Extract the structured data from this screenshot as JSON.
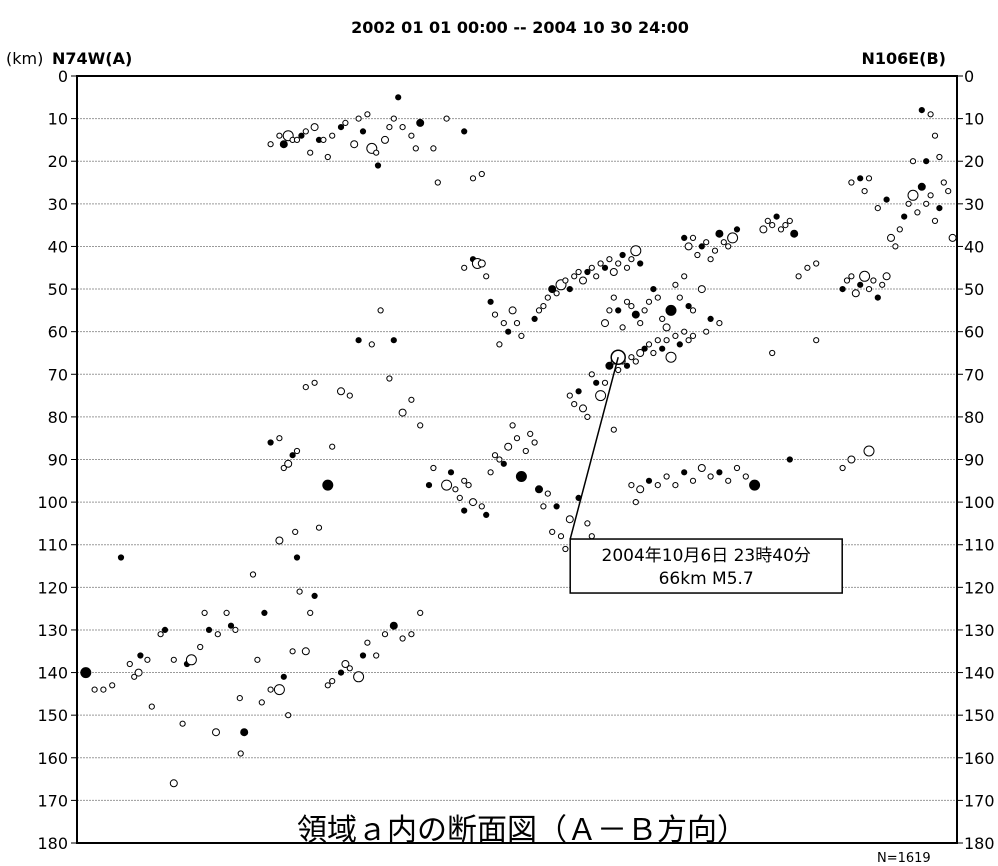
{
  "chart_data": {
    "type": "scatter",
    "period": "2002 01 01 00:00 -- 2004 10 30 24:00",
    "ylabel": "(km)",
    "left_end_label": "N74W(A)",
    "right_end_label": "N106E(B)",
    "plot_title": "領域ａ内の断面図（Ａ－Ｂ方向）",
    "count_label": "N=1619",
    "y_axis": {
      "reversed": true,
      "ylim": [
        0,
        180
      ],
      "ticks": [
        0,
        10,
        20,
        30,
        40,
        50,
        60,
        70,
        80,
        90,
        100,
        110,
        120,
        130,
        140,
        150,
        160,
        170,
        180
      ],
      "grid": true
    },
    "x_axis": {
      "xlim": [
        0,
        100
      ],
      "ticks_shown": false
    },
    "highlight_event": {
      "line1": "2004年10月6日 23時40分",
      "line2": "66km  M5.7",
      "x": 61.5,
      "depth": 66,
      "box_x": 71.5,
      "box_depth": 115
    },
    "series": [
      {
        "name": "",
        "points": [
          [
            1,
            140
          ],
          [
            2,
            144
          ],
          [
            3,
            144
          ],
          [
            4,
            143
          ],
          [
            5,
            113
          ],
          [
            6,
            138
          ],
          [
            6.5,
            141
          ],
          [
            7,
            140
          ],
          [
            7.2,
            136
          ],
          [
            8,
            137
          ],
          [
            8.5,
            148
          ],
          [
            9.5,
            131
          ],
          [
            10,
            130
          ],
          [
            11,
            137
          ],
          [
            11,
            166
          ],
          [
            12,
            152
          ],
          [
            12.5,
            138
          ],
          [
            13,
            137
          ],
          [
            14,
            134
          ],
          [
            14.5,
            126
          ],
          [
            15,
            130
          ],
          [
            15.8,
            154
          ],
          [
            16,
            131
          ],
          [
            17,
            126
          ],
          [
            17.5,
            129
          ],
          [
            18,
            130
          ],
          [
            18.5,
            146
          ],
          [
            18.6,
            159
          ],
          [
            19,
            154
          ],
          [
            20,
            117
          ],
          [
            20.5,
            137
          ],
          [
            21,
            147
          ],
          [
            21.3,
            126
          ],
          [
            22,
            144
          ],
          [
            23,
            144
          ],
          [
            23,
            109
          ],
          [
            23.5,
            141
          ],
          [
            24,
            150
          ],
          [
            24.5,
            135
          ],
          [
            24.8,
            107
          ],
          [
            25,
            113
          ],
          [
            25.3,
            121
          ],
          [
            26,
            135
          ],
          [
            26.5,
            126
          ],
          [
            27,
            122
          ],
          [
            27.5,
            106
          ],
          [
            28.5,
            143
          ],
          [
            29,
            142
          ],
          [
            30,
            140
          ],
          [
            30.5,
            138
          ],
          [
            31,
            139
          ],
          [
            32,
            141
          ],
          [
            32.5,
            136
          ],
          [
            33,
            133
          ],
          [
            34,
            136
          ],
          [
            35,
            131
          ],
          [
            36,
            129
          ],
          [
            37,
            132
          ],
          [
            38,
            131
          ],
          [
            39,
            126
          ],
          [
            22,
            86
          ],
          [
            23,
            85
          ],
          [
            23.5,
            92
          ],
          [
            24,
            91
          ],
          [
            24.5,
            89
          ],
          [
            25,
            88
          ],
          [
            26,
            73
          ],
          [
            27,
            72
          ],
          [
            28.5,
            96
          ],
          [
            29,
            87
          ],
          [
            30,
            74
          ],
          [
            31,
            75
          ],
          [
            32,
            62
          ],
          [
            33.5,
            63
          ],
          [
            34.5,
            55
          ],
          [
            35.5,
            71
          ],
          [
            36,
            62
          ],
          [
            37,
            79
          ],
          [
            38,
            76
          ],
          [
            39,
            82
          ],
          [
            40,
            96
          ],
          [
            40.5,
            92
          ],
          [
            22,
            16
          ],
          [
            23,
            14
          ],
          [
            23.5,
            16
          ],
          [
            24,
            14
          ],
          [
            24.5,
            15
          ],
          [
            25,
            15
          ],
          [
            25.5,
            14
          ],
          [
            26,
            13
          ],
          [
            26.5,
            18
          ],
          [
            27,
            12
          ],
          [
            27.5,
            15
          ],
          [
            28,
            15
          ],
          [
            28.5,
            19
          ],
          [
            29,
            14
          ],
          [
            30,
            12
          ],
          [
            30.5,
            11
          ],
          [
            31.5,
            16
          ],
          [
            32,
            10
          ],
          [
            32.5,
            13
          ],
          [
            33,
            9
          ],
          [
            33.5,
            17
          ],
          [
            34,
            18
          ],
          [
            34.2,
            21
          ],
          [
            35,
            15
          ],
          [
            35.5,
            12
          ],
          [
            36,
            10
          ],
          [
            36.5,
            5
          ],
          [
            37,
            12
          ],
          [
            38,
            14
          ],
          [
            38.5,
            17
          ],
          [
            39,
            11
          ],
          [
            40.5,
            17
          ],
          [
            41,
            25
          ],
          [
            42,
            10
          ],
          [
            44,
            13
          ],
          [
            45,
            24
          ],
          [
            46,
            23
          ],
          [
            42,
            96
          ],
          [
            42.5,
            93
          ],
          [
            43,
            97
          ],
          [
            43.5,
            99
          ],
          [
            44,
            95
          ],
          [
            44,
            102
          ],
          [
            44.5,
            96
          ],
          [
            45,
            100
          ],
          [
            46,
            101
          ],
          [
            46.5,
            103
          ],
          [
            47,
            93
          ],
          [
            47.5,
            89
          ],
          [
            48,
            90
          ],
          [
            48.5,
            91
          ],
          [
            49,
            87
          ],
          [
            49.5,
            82
          ],
          [
            50,
            85
          ],
          [
            50.5,
            94
          ],
          [
            51,
            88
          ],
          [
            51.5,
            84
          ],
          [
            52,
            86
          ],
          [
            52.5,
            97
          ],
          [
            53,
            101
          ],
          [
            53.5,
            98
          ],
          [
            54,
            107
          ],
          [
            54.5,
            101
          ],
          [
            55,
            108
          ],
          [
            55.5,
            111
          ],
          [
            56,
            104
          ],
          [
            57,
            99
          ],
          [
            58,
            105
          ],
          [
            58.5,
            108
          ],
          [
            44,
            45
          ],
          [
            45,
            43
          ],
          [
            45.5,
            44
          ],
          [
            46,
            44
          ],
          [
            46.5,
            47
          ],
          [
            47,
            53
          ],
          [
            47.5,
            56
          ],
          [
            48,
            63
          ],
          [
            48.5,
            58
          ],
          [
            49,
            60
          ],
          [
            49.5,
            55
          ],
          [
            50,
            58
          ],
          [
            50.5,
            61
          ],
          [
            52,
            57
          ],
          [
            52.5,
            55
          ],
          [
            53,
            54
          ],
          [
            53.5,
            52
          ],
          [
            54,
            50
          ],
          [
            54.5,
            51
          ],
          [
            55,
            49
          ],
          [
            55.5,
            48
          ],
          [
            56,
            50
          ],
          [
            56.5,
            47
          ],
          [
            57,
            46
          ],
          [
            57.5,
            48
          ],
          [
            58,
            46
          ],
          [
            58.5,
            45
          ],
          [
            59,
            47
          ],
          [
            59.5,
            44
          ],
          [
            60,
            45
          ],
          [
            60.5,
            43
          ],
          [
            61,
            46
          ],
          [
            61.5,
            44
          ],
          [
            62,
            42
          ],
          [
            62.5,
            45
          ],
          [
            63,
            43
          ],
          [
            63.5,
            41
          ],
          [
            64,
            44
          ],
          [
            60,
            58
          ],
          [
            60.5,
            55
          ],
          [
            61,
            52
          ],
          [
            61.5,
            55
          ],
          [
            62,
            59
          ],
          [
            62.5,
            53
          ],
          [
            63,
            54
          ],
          [
            63.5,
            56
          ],
          [
            64,
            58
          ],
          [
            64.5,
            55
          ],
          [
            65,
            53
          ],
          [
            65.5,
            50
          ],
          [
            66,
            52
          ],
          [
            66.5,
            57
          ],
          [
            67,
            59
          ],
          [
            67.5,
            55
          ],
          [
            68,
            49
          ],
          [
            68.5,
            52
          ],
          [
            69,
            47
          ],
          [
            69.5,
            54
          ],
          [
            70,
            55
          ],
          [
            71,
            50
          ],
          [
            71.5,
            60
          ],
          [
            72,
            57
          ],
          [
            73,
            58
          ],
          [
            56,
            75
          ],
          [
            56.5,
            77
          ],
          [
            57,
            74
          ],
          [
            57.5,
            78
          ],
          [
            58,
            80
          ],
          [
            58.5,
            70
          ],
          [
            59,
            72
          ],
          [
            59.5,
            75
          ],
          [
            60,
            72
          ],
          [
            61,
            83
          ],
          [
            60.5,
            68
          ],
          [
            61,
            67
          ],
          [
            61.5,
            69
          ],
          [
            62,
            67
          ],
          [
            62.5,
            68
          ],
          [
            63,
            66
          ],
          [
            63.5,
            67
          ],
          [
            64,
            65
          ],
          [
            64.5,
            64
          ],
          [
            65,
            63
          ],
          [
            65.5,
            65
          ],
          [
            66,
            62
          ],
          [
            66.5,
            64
          ],
          [
            67,
            62
          ],
          [
            67.5,
            66
          ],
          [
            68,
            61
          ],
          [
            68.5,
            63
          ],
          [
            69,
            60
          ],
          [
            69.5,
            62
          ],
          [
            70,
            61
          ],
          [
            69,
            38
          ],
          [
            69.5,
            40
          ],
          [
            70,
            38
          ],
          [
            70.5,
            42
          ],
          [
            71,
            40
          ],
          [
            71.5,
            39
          ],
          [
            72,
            43
          ],
          [
            72.5,
            41
          ],
          [
            73,
            37
          ],
          [
            73.5,
            39
          ],
          [
            74,
            40
          ],
          [
            74.5,
            38
          ],
          [
            75,
            36
          ],
          [
            63,
            96
          ],
          [
            63.5,
            100
          ],
          [
            64,
            97
          ],
          [
            65,
            95
          ],
          [
            66,
            96
          ],
          [
            67,
            94
          ],
          [
            68,
            96
          ],
          [
            69,
            93
          ],
          [
            70,
            95
          ],
          [
            71,
            92
          ],
          [
            72,
            94
          ],
          [
            73,
            93
          ],
          [
            74,
            95
          ],
          [
            75,
            92
          ],
          [
            76,
            94
          ],
          [
            77,
            96
          ],
          [
            78,
            36
          ],
          [
            78.5,
            34
          ],
          [
            79,
            35
          ],
          [
            79.5,
            33
          ],
          [
            80,
            36
          ],
          [
            80.5,
            35
          ],
          [
            81,
            34
          ],
          [
            81.5,
            37
          ],
          [
            82,
            47
          ],
          [
            83,
            45
          ],
          [
            84,
            44
          ],
          [
            87,
            50
          ],
          [
            87.5,
            48
          ],
          [
            88,
            47
          ],
          [
            88.5,
            51
          ],
          [
            89,
            49
          ],
          [
            89.5,
            47
          ],
          [
            90,
            50
          ],
          [
            90.5,
            48
          ],
          [
            91,
            52
          ],
          [
            91.5,
            49
          ],
          [
            92,
            47
          ],
          [
            88,
            25
          ],
          [
            89,
            24
          ],
          [
            89.5,
            27
          ],
          [
            90,
            24
          ],
          [
            91,
            31
          ],
          [
            92,
            29
          ],
          [
            92.5,
            38
          ],
          [
            93,
            40
          ],
          [
            93.5,
            36
          ],
          [
            94,
            33
          ],
          [
            94.5,
            30
          ],
          [
            95,
            28
          ],
          [
            95.5,
            32
          ],
          [
            96,
            26
          ],
          [
            96.5,
            30
          ],
          [
            97,
            28
          ],
          [
            97.5,
            34
          ],
          [
            98,
            31
          ],
          [
            98.5,
            25
          ],
          [
            99,
            27
          ],
          [
            99.5,
            38
          ],
          [
            96,
            8
          ],
          [
            97,
            9
          ],
          [
            97.5,
            14
          ],
          [
            95,
            20
          ],
          [
            96.5,
            20
          ],
          [
            98,
            19
          ],
          [
            88,
            90
          ],
          [
            90,
            88
          ],
          [
            81,
            90
          ],
          [
            84,
            62
          ],
          [
            79,
            65
          ],
          [
            87,
            92
          ]
        ]
      }
    ]
  }
}
